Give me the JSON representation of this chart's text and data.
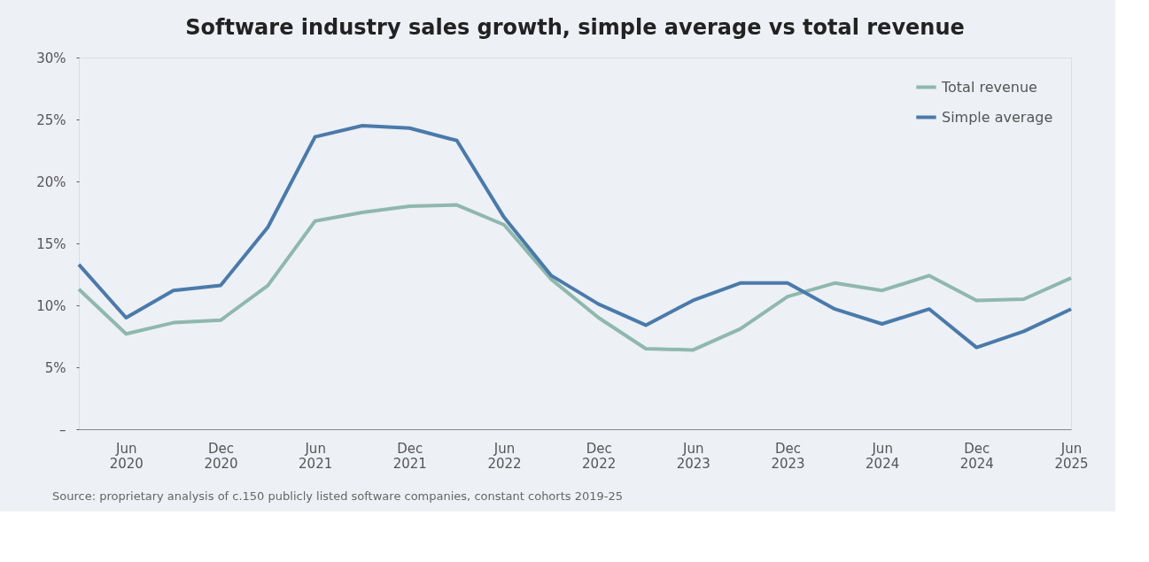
{
  "chart_data": {
    "type": "line",
    "title": "Software industry sales growth, simple average vs total revenue",
    "categories": [
      null,
      "Jun 2020",
      null,
      "Dec 2020",
      null,
      "Jun 2021",
      null,
      "Dec 2021",
      null,
      "Jun 2022",
      null,
      "Dec 2022",
      null,
      "Jun 2023",
      null,
      "Dec 2023",
      null,
      "Jun 2024",
      null,
      "Dec 2024",
      null,
      "Jun 2025"
    ],
    "series": [
      {
        "name": "Total revenue",
        "color": "#8fb8ad",
        "values": [
          11.3,
          7.7,
          8.6,
          8.8,
          11.6,
          16.8,
          17.5,
          18.0,
          18.1,
          16.5,
          12.1,
          9.0,
          6.5,
          6.4,
          8.1,
          10.7,
          11.8,
          11.2,
          12.4,
          10.4,
          10.5,
          12.2
        ]
      },
      {
        "name": "Simple average",
        "color": "#4a7aaa",
        "values": [
          13.3,
          9.0,
          11.2,
          11.6,
          16.3,
          23.6,
          24.5,
          24.3,
          23.3,
          17.1,
          12.4,
          10.1,
          8.4,
          10.4,
          11.8,
          11.8,
          9.7,
          8.5,
          9.7,
          6.6,
          7.9,
          9.7
        ]
      }
    ],
    "ylim": [
      0,
      30
    ],
    "yticks": [
      {
        "value": 0,
        "label": "–"
      },
      {
        "value": 5,
        "label": "5%"
      },
      {
        "value": 10,
        "label": "10%"
      },
      {
        "value": 15,
        "label": "15%"
      },
      {
        "value": 20,
        "label": "20%"
      },
      {
        "value": 25,
        "label": "25%"
      },
      {
        "value": 30,
        "label": "30%"
      }
    ],
    "legend": "top right",
    "grid": false,
    "marker": "none",
    "line_style": "solid",
    "annotations": [
      "Source: proprietary analysis of c.150 publicly listed software companies, constant cohorts 2019-25"
    ]
  }
}
